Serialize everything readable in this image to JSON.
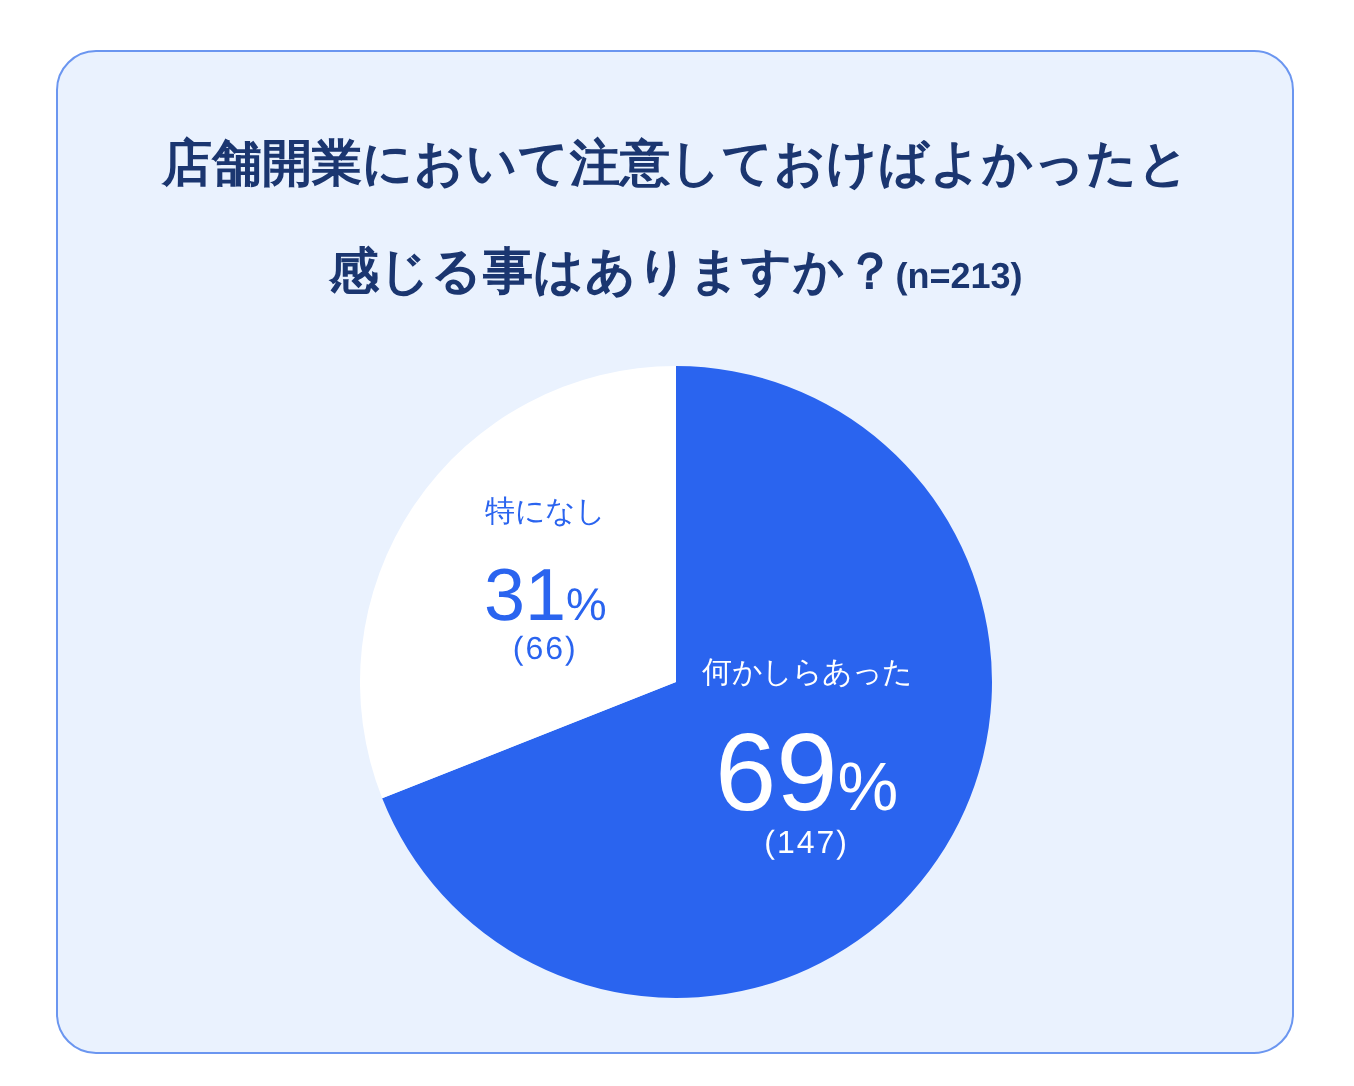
{
  "chart_data": {
    "type": "pie",
    "title": "店舗開業において注意しておけばよかったと感じる事はありますか？",
    "subtitle": "(n=213)",
    "categories": [
      "何かしらあった",
      "特になし"
    ],
    "values": [
      69,
      31
    ],
    "colors": [
      "#2a64ef",
      "#ffffff"
    ],
    "value_labels": [
      "69%",
      "31%"
    ],
    "annotations": [
      "(147)",
      "(66)"
    ]
  }
}
